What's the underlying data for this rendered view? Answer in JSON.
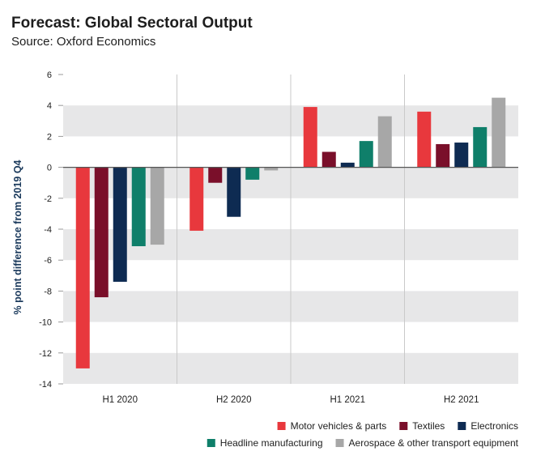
{
  "chart_data": {
    "type": "bar",
    "title": "Forecast: Global Sectoral Output",
    "subtitle": "Source: Oxford Economics",
    "ylabel": "% point difference from 2019 Q4",
    "xlabel": "",
    "ylim": [
      -14,
      6
    ],
    "yticks": [
      6,
      4,
      2,
      0,
      -2,
      -4,
      -6,
      -8,
      -10,
      -12,
      -14
    ],
    "categories": [
      "H1 2020",
      "H2 2020",
      "H1 2021",
      "H2 2021"
    ],
    "series": [
      {
        "name": "Motor vehicles & parts",
        "color": "#e8383d",
        "values": [
          -13.0,
          -4.1,
          3.9,
          3.6
        ]
      },
      {
        "name": "Textiles",
        "color": "#7a0f2a",
        "values": [
          -8.4,
          -1.0,
          1.0,
          1.5
        ]
      },
      {
        "name": "Electronics",
        "color": "#0e2b52",
        "values": [
          -7.4,
          -3.2,
          0.3,
          1.6
        ]
      },
      {
        "name": "Headline manufacturing",
        "color": "#0f7f6a",
        "values": [
          -5.1,
          -0.8,
          1.7,
          2.6
        ]
      },
      {
        "name": "Aerospace & other transport equipment",
        "color": "#a7a7a7",
        "values": [
          -5.0,
          -0.2,
          3.3,
          4.5
        ]
      }
    ],
    "legend_position": "bottom-right",
    "grid": "alternating-bands"
  }
}
